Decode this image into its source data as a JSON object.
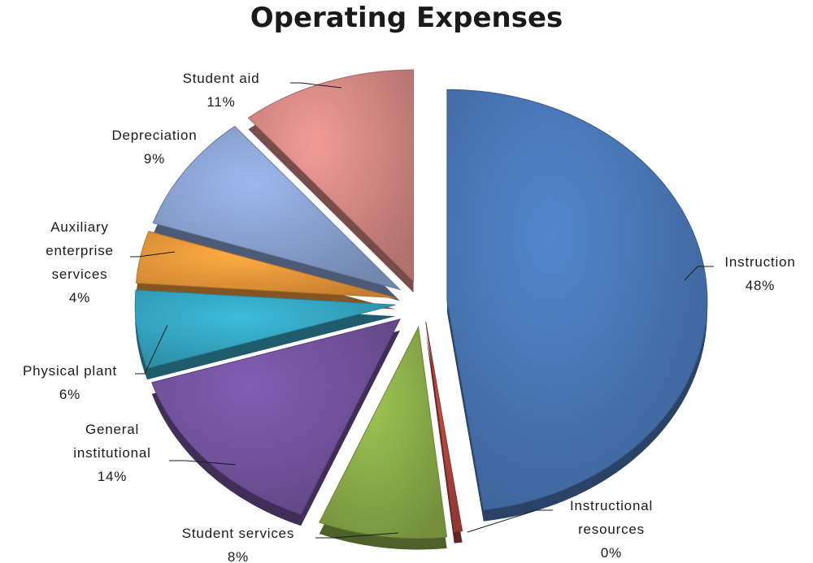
{
  "chart_data": {
    "type": "pie",
    "title": "Operating Expenses",
    "slices": [
      {
        "label": [
          "Instruction"
        ],
        "value": 48,
        "value_label": "48%",
        "color": "#4a78b8"
      },
      {
        "label": [
          "Instructional",
          "resources"
        ],
        "value": 0.5,
        "value_label": "0%",
        "color": "#b0443f"
      },
      {
        "label": [
          "Student services"
        ],
        "value": 8,
        "value_label": "8%",
        "color": "#8db04a"
      },
      {
        "label": [
          "General",
          "institutional"
        ],
        "value": 14,
        "value_label": "14%",
        "color": "#7454a0"
      },
      {
        "label": [
          "Physical plant"
        ],
        "value": 6,
        "value_label": "6%",
        "color": "#36a8c4"
      },
      {
        "label": [
          "Auxiliary",
          "enterprise",
          "services"
        ],
        "value": 4,
        "value_label": "4%",
        "color": "#f09a3a"
      },
      {
        "label": [
          "Depreciation"
        ],
        "value": 9,
        "value_label": "9%",
        "color": "#8ba4d4"
      },
      {
        "label": [
          "Student aid"
        ],
        "value": 11,
        "value_label": "11%",
        "color": "#d88a86"
      }
    ]
  }
}
